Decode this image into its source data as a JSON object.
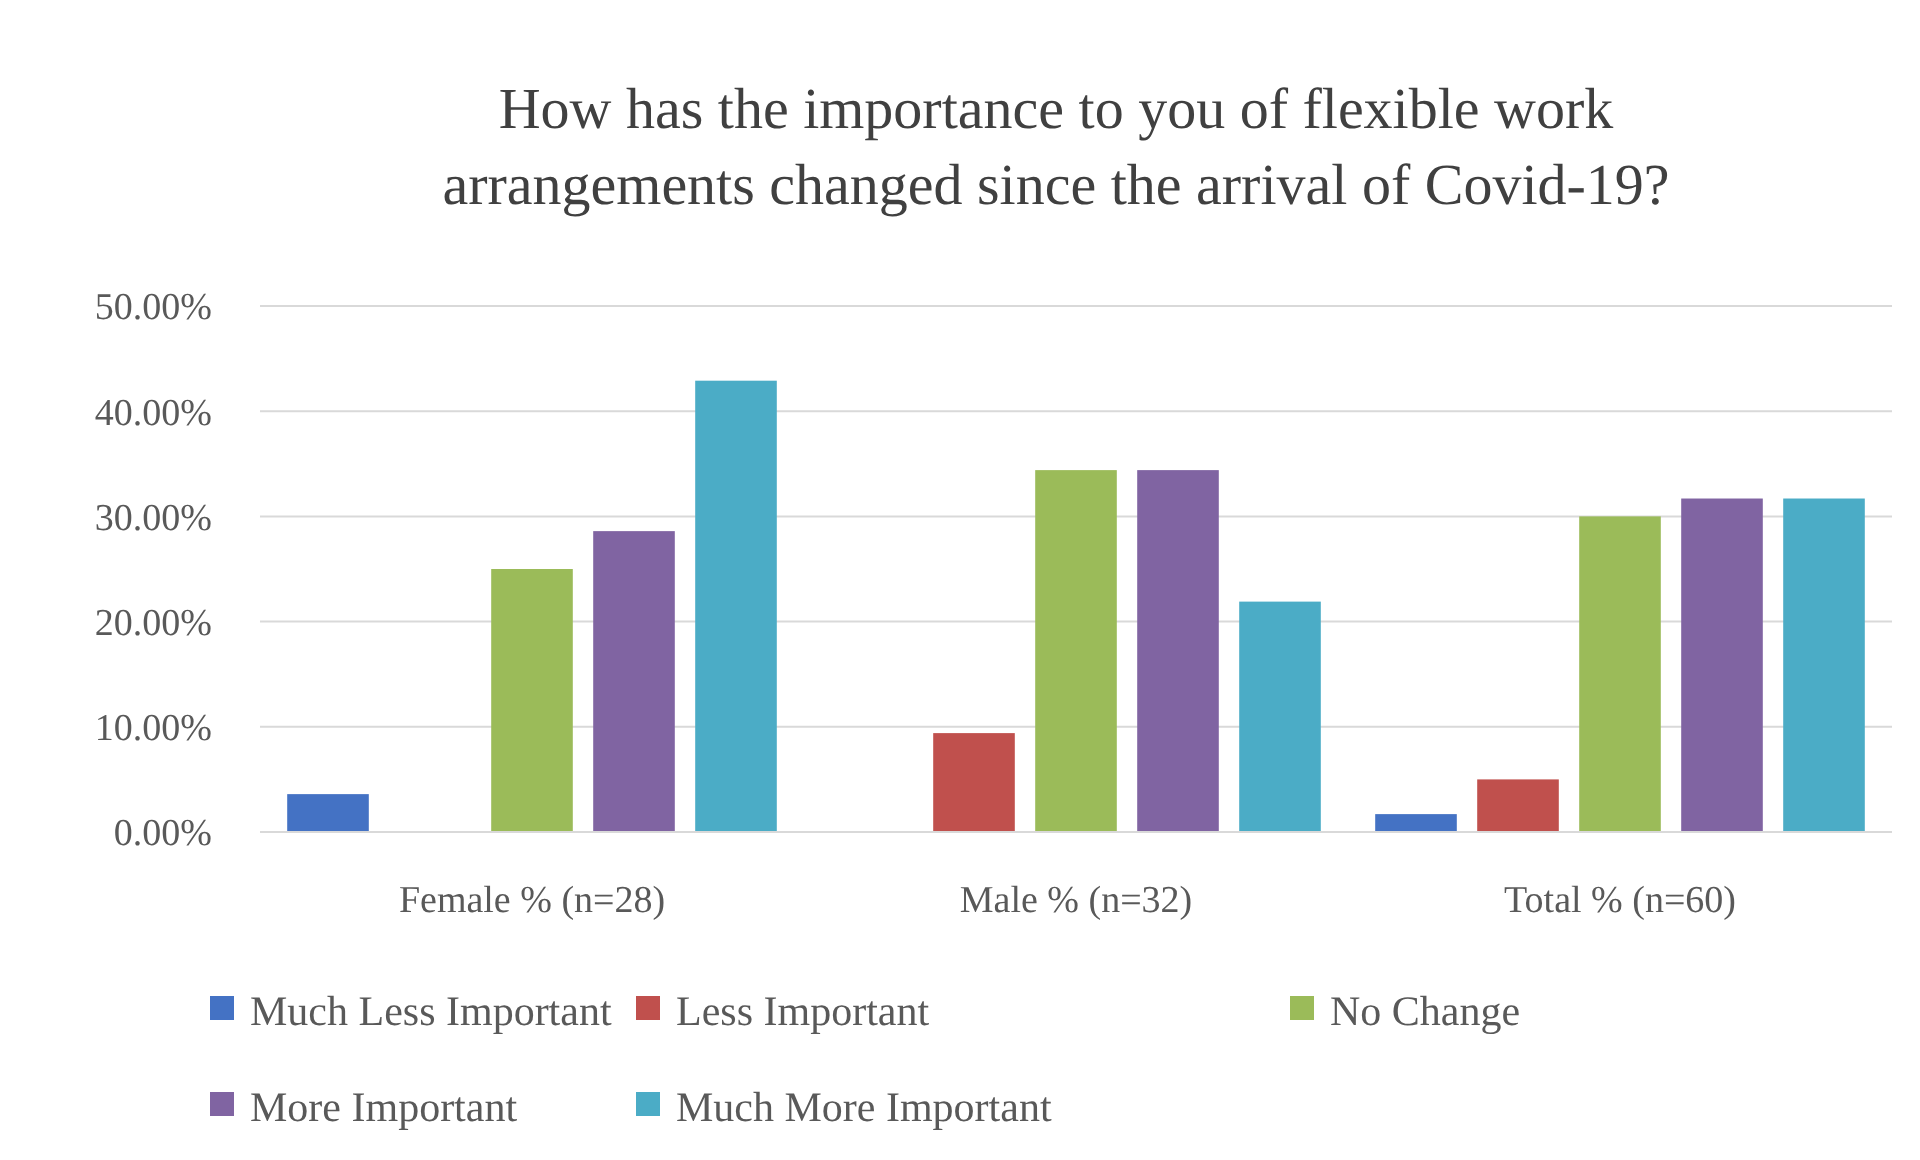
{
  "chart_data": {
    "type": "bar",
    "title": "How has the importance to you of flexible work arrangements changed since the arrival of Covid-19?",
    "categories": [
      "Female % (n=28)",
      "Male % (n=32)",
      "Total % (n=60)"
    ],
    "series": [
      {
        "name": "Much Less Important",
        "color": "#4472c4",
        "values": [
          3.6,
          0,
          1.7
        ]
      },
      {
        "name": "Less Important",
        "color": "#c0504d",
        "values": [
          0,
          9.4,
          5
        ]
      },
      {
        "name": "No Change",
        "color": "#9bbb59",
        "values": [
          25,
          34.4,
          30
        ]
      },
      {
        "name": "More Important",
        "color": "#8064a2",
        "values": [
          28.6,
          34.4,
          31.7
        ]
      },
      {
        "name": "Much More Important",
        "color": "#4bacc6",
        "values": [
          42.9,
          21.9,
          31.7
        ]
      }
    ],
    "ylim": [
      0,
      50
    ],
    "yticks": [
      {
        "value": 0,
        "label": "0.00%"
      },
      {
        "value": 10,
        "label": "10.00%"
      },
      {
        "value": 20,
        "label": "20.00%"
      },
      {
        "value": 30,
        "label": "30.00%"
      },
      {
        "value": 40,
        "label": "40.00%"
      },
      {
        "value": 50,
        "label": "50.00%"
      }
    ],
    "grid": "y",
    "legend": "bottom"
  }
}
